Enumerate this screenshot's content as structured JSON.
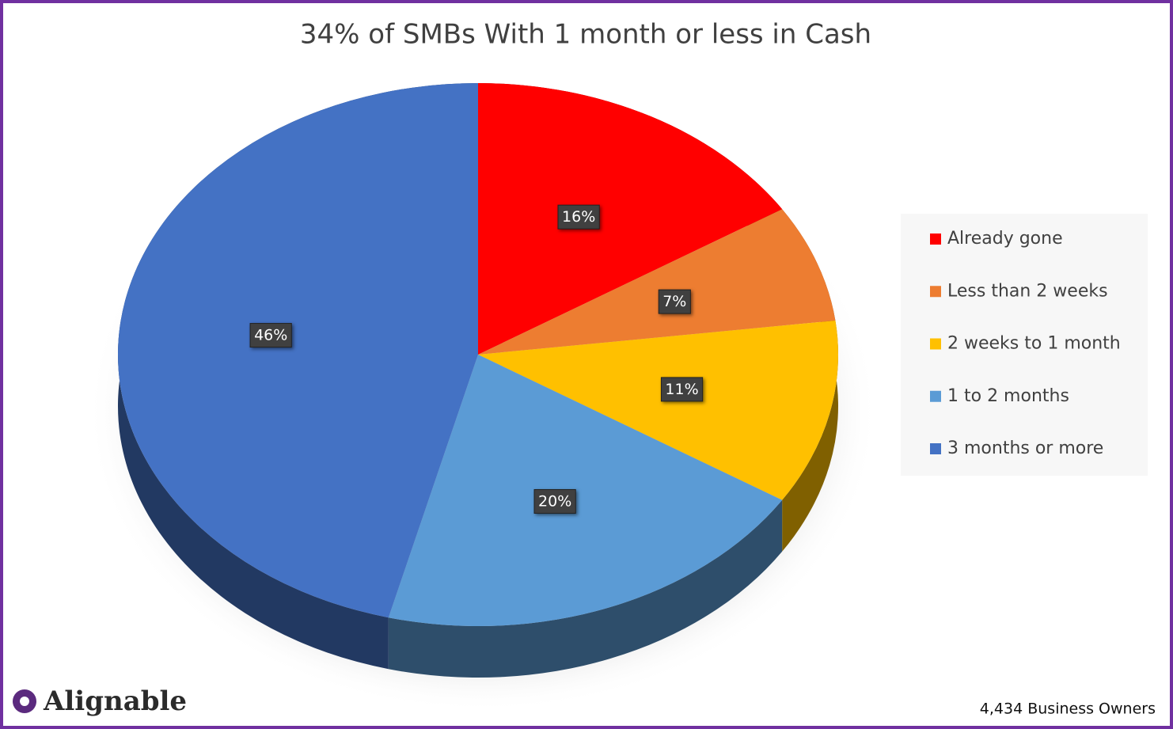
{
  "chart_data": {
    "type": "pie",
    "title": "34% of SMBs With 1 month or less in Cash",
    "categories": [
      "Already gone",
      "Less than 2 weeks",
      "2 weeks to 1 month",
      "1 to 2 months",
      "3 months or more"
    ],
    "values": [
      16,
      7,
      11,
      20,
      46
    ],
    "value_labels": [
      "16%",
      "7%",
      "11%",
      "20%",
      "46%"
    ],
    "colors": [
      "#ff0000",
      "#ed7d31",
      "#ffc000",
      "#5b9bd5",
      "#4472c4"
    ],
    "legend": "right",
    "footnote": "4,434 Business Owners",
    "logo": "Alignable"
  }
}
